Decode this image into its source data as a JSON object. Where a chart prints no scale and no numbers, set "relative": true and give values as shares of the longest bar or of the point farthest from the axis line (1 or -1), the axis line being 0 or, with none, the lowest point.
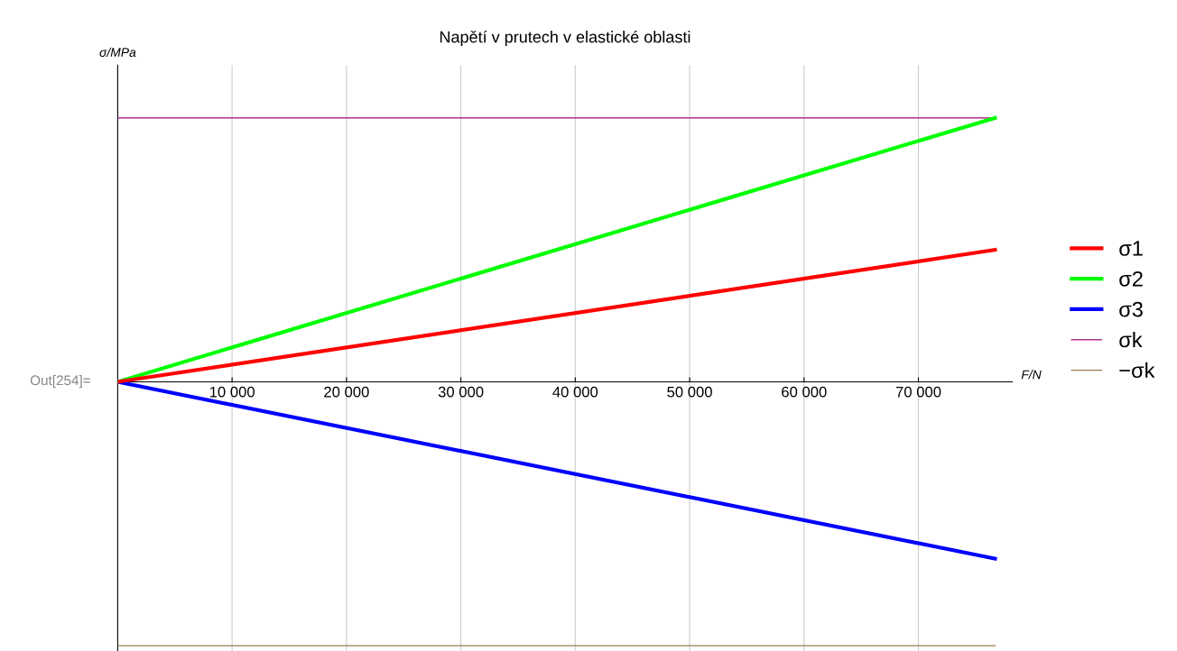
{
  "chart_data": {
    "type": "line",
    "title": "Napětí v prutech v elastické oblasti",
    "xlabel": "F/N",
    "ylabel": "σ/MPa",
    "relative": true,
    "xlim": [
      0,
      78200
    ],
    "xticks": [
      {
        "value": 10000,
        "label": "10 000"
      },
      {
        "value": 20000,
        "label": "20 000"
      },
      {
        "value": 30000,
        "label": "30 000"
      },
      {
        "value": 40000,
        "label": "40 000"
      },
      {
        "value": 50000,
        "label": "50 000"
      },
      {
        "value": 60000,
        "label": "60 000"
      },
      {
        "value": 70000,
        "label": "70 000"
      }
    ],
    "grid": "x",
    "legend": "right",
    "marker": "none",
    "line_style": "solid",
    "annotations": [
      "Out[254]="
    ],
    "x": [
      0,
      76700
    ],
    "series": [
      {
        "name": "σ1",
        "color": "#ff0000",
        "values": [
          0,
          0.5
        ]
      },
      {
        "name": "σ2",
        "color": "#00ff00",
        "values": [
          0,
          1
        ]
      },
      {
        "name": "σ3",
        "color": "#0000ff",
        "values": [
          0,
          -0.67
        ]
      },
      {
        "name": "σk",
        "color": "#b03090",
        "values": [
          1,
          1
        ]
      },
      {
        "name": "−σk",
        "color": "#9b7a50",
        "values": [
          -1,
          -1
        ]
      }
    ]
  }
}
